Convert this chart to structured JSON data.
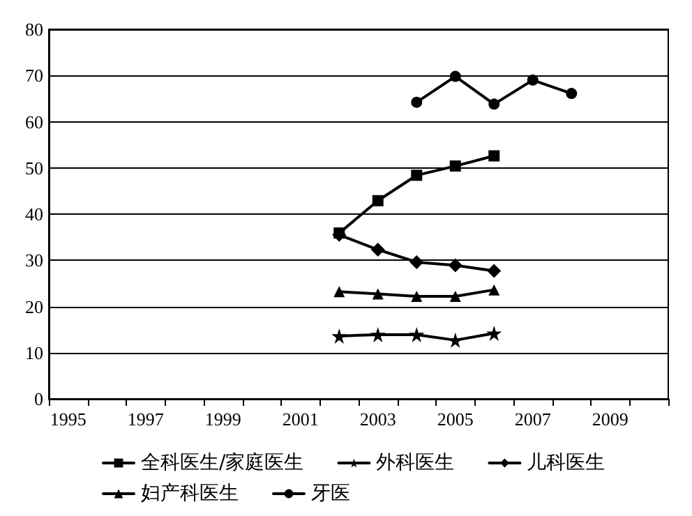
{
  "chart_data": {
    "type": "line",
    "categories": [
      "1995",
      null,
      "1997",
      null,
      "1999",
      null,
      "2001",
      null,
      "2003",
      null,
      "2005",
      null,
      "2007",
      null,
      "2009",
      null
    ],
    "series": [
      {
        "name": "全科医生/家庭医生",
        "color": "#000000",
        "marker": "square",
        "values": [
          null,
          null,
          null,
          null,
          null,
          null,
          null,
          35.9,
          42.9,
          48.4,
          50.4,
          52.6,
          null,
          null,
          null,
          null
        ]
      },
      {
        "name": "外科医生",
        "color": "#000000",
        "marker": "star",
        "values": [
          null,
          null,
          null,
          null,
          null,
          null,
          null,
          13.6,
          13.9,
          13.9,
          12.7,
          14.2,
          null,
          null,
          null,
          null
        ]
      },
      {
        "name": "儿科医生",
        "color": "#000000",
        "marker": "diamond",
        "values": [
          null,
          null,
          null,
          null,
          null,
          null,
          null,
          35.5,
          32.3,
          29.6,
          28.9,
          27.7,
          null,
          null,
          null,
          null
        ]
      },
      {
        "name": "妇产科医生",
        "color": "#000000",
        "marker": "triangle",
        "values": [
          null,
          null,
          null,
          null,
          null,
          null,
          null,
          23.2,
          22.7,
          22.2,
          22.2,
          23.6,
          null,
          null,
          null,
          null
        ]
      },
      {
        "name": "牙医",
        "color": "#000000",
        "marker": "circle",
        "values": [
          null,
          null,
          null,
          null,
          null,
          null,
          null,
          null,
          null,
          64.2,
          69.8,
          63.8,
          69.0,
          66.1,
          null,
          null
        ]
      }
    ],
    "ylim": [
      0,
      80
    ],
    "yticks": [
      0,
      10,
      20,
      30,
      40,
      50,
      60,
      70,
      80
    ],
    "grid": "y",
    "legend": "bottom",
    "line_style": "solid"
  }
}
